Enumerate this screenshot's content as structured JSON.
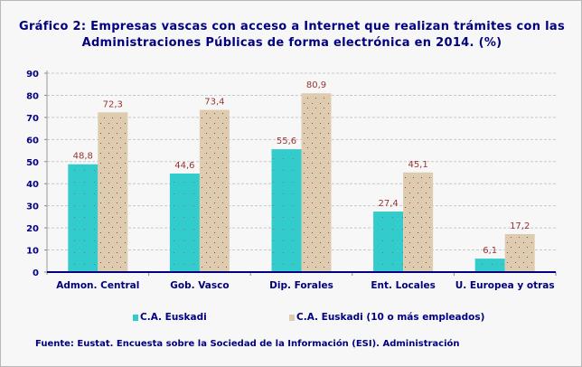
{
  "chart_data": {
    "type": "bar",
    "title": "Gráfico 2: Empresas vascas con acceso a Internet que realizan trámites con las Administraciones Públicas de forma electrónica en 2014. (%)",
    "title_lines": [
      "Gráfico 2: Empresas vascas con acceso a Internet que realizan trámites con las",
      "Administraciones Públicas de forma electrónica en 2014. (%)"
    ],
    "categories": [
      "Admon. Central",
      "Gob. Vasco",
      "Dip. Forales",
      "Ent. Locales",
      "U. Europea y otras"
    ],
    "series": [
      {
        "name": "C.A. Euskadi",
        "values": [
          48.8,
          44.6,
          55.6,
          27.4,
          6.1
        ],
        "labels": [
          "48,8",
          "44,6",
          "55,6",
          "27,4",
          "6,1"
        ],
        "color": "#33cccc"
      },
      {
        "name": "C.A. Euskadi (10 o más empleados)",
        "values": [
          72.3,
          73.4,
          80.9,
          45.1,
          17.2
        ],
        "labels": [
          "72,3",
          "73,4",
          "80,9",
          "45,1",
          "17,2"
        ],
        "color": "#ddccb0"
      }
    ],
    "yticks": [
      "0",
      "10",
      "20",
      "30",
      "40",
      "50",
      "60",
      "70",
      "80",
      "90"
    ],
    "ylim": [
      0,
      90
    ],
    "grid": true,
    "legend_position": "bottom",
    "xlabel": "",
    "ylabel": ""
  },
  "source": "Fuente: Eustat. Encuesta sobre la Sociedad de la Información (ESI). Administración"
}
